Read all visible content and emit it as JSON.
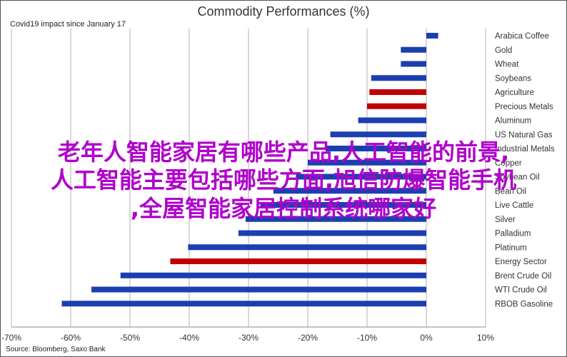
{
  "overlay": {
    "line1": "老年人智能家居有哪些产品,人工智能的前景,",
    "line2": "人工智能主要包括哪些方面,旭信防爆智能手机",
    "line3": ",全屋智能家居控制系统哪家好"
  },
  "chart_data": {
    "type": "bar",
    "orientation": "horizontal",
    "title": "Commodity Performances (%)",
    "subtitle": "Covid19 impact since January 17",
    "source": "Source: Bloomberg, Saxo Bank",
    "categories": [
      "Arabica Coffee",
      "Gold",
      "Wheat",
      "Soybeans",
      "Agriculture",
      "Precious Metals",
      "Aluminum",
      "US Natural Gas",
      "Industrial Metals",
      "Copper",
      "Soybean Oil",
      "Bean Oil",
      "Live Cattle",
      "Silver",
      "Palladium",
      "Platinum",
      "Energy Sector",
      "Brent Crude Oil",
      "WTI Crude Oil",
      "RBOB Gasoline"
    ],
    "values": [
      2,
      -4.3,
      -4.3,
      -9.3,
      -9.6,
      -10,
      -11.5,
      -16.2,
      -17,
      -20,
      -22,
      -25.8,
      -28,
      -30.5,
      -31.7,
      -40.2,
      -43.2,
      -51.6,
      -56.5,
      -61.5
    ],
    "highlight": [
      false,
      false,
      false,
      false,
      true,
      true,
      false,
      false,
      false,
      false,
      false,
      false,
      false,
      false,
      false,
      false,
      true,
      false,
      false,
      false
    ],
    "colors": {
      "normal": "#1c3fb0",
      "highlight": "#c00000"
    },
    "xlim": [
      -70,
      10
    ],
    "xticks": [
      -70,
      -60,
      -50,
      -40,
      -30,
      -20,
      -10,
      0,
      10
    ],
    "xtick_labels": [
      "-70%",
      "-60%",
      "-50%",
      "-40%",
      "-30%",
      "-20%",
      "-10%",
      "0%",
      "10%"
    ],
    "grid": true
  }
}
